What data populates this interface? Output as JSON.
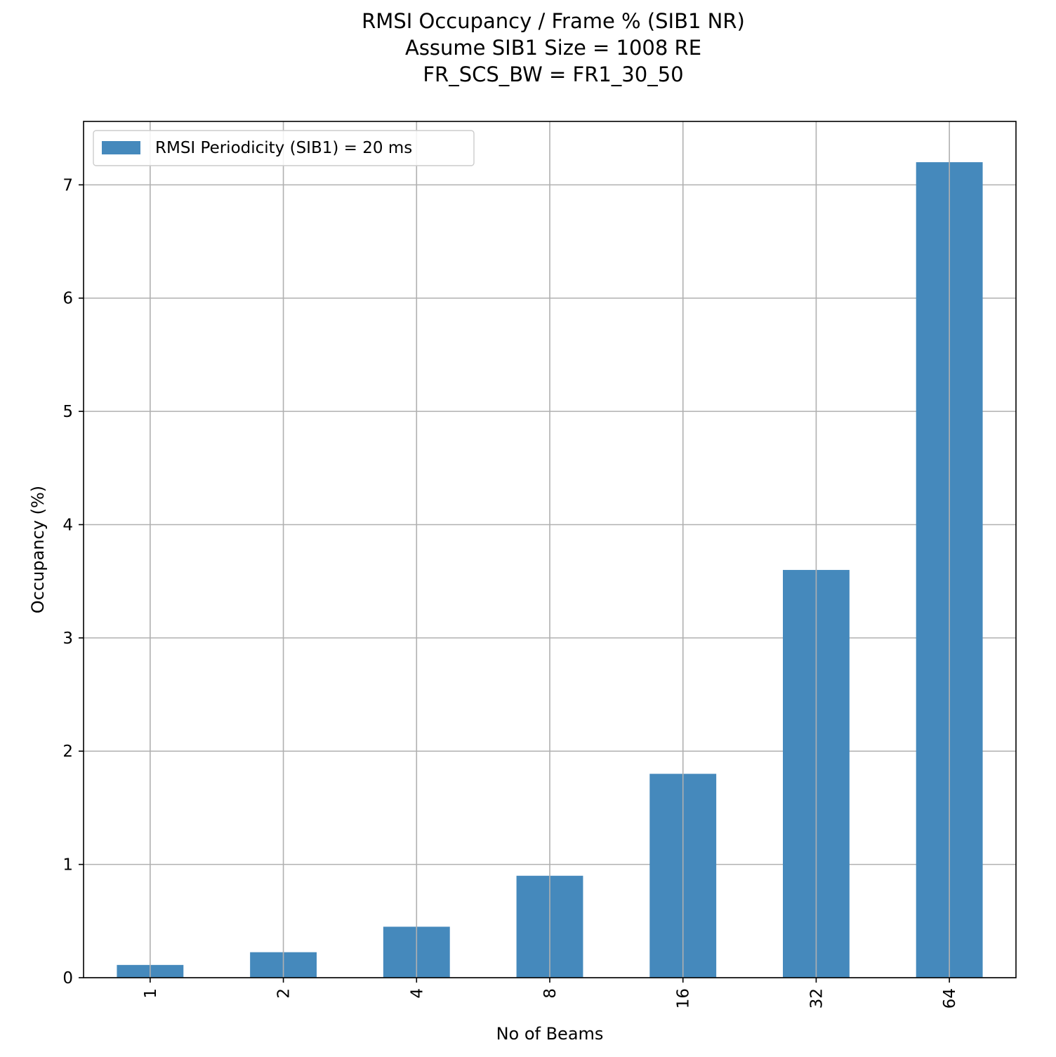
{
  "chart_data": {
    "type": "bar",
    "title_lines": [
      "RMSI Occupancy / Frame % (SIB1 NR)",
      "Assume SIB1 Size = 1008 RE",
      "FR_SCS_BW = FR1_30_50"
    ],
    "xlabel": "No of Beams",
    "ylabel": "Occupancy (%)",
    "categories": [
      "1",
      "2",
      "4",
      "8",
      "16",
      "32",
      "64"
    ],
    "series": [
      {
        "name": "RMSI Periodicity (SIB1) = 20 ms",
        "color": "#4589bc",
        "values": [
          0.1125,
          0.225,
          0.45,
          0.9,
          1.8,
          3.6,
          7.2
        ]
      }
    ],
    "yticks": [
      "0",
      "1",
      "2",
      "3",
      "4",
      "5",
      "6",
      "7"
    ],
    "ylim": [
      0,
      7.56
    ],
    "grid": true,
    "legend_position": "top-left",
    "x_tick_rotation": "vertical"
  }
}
